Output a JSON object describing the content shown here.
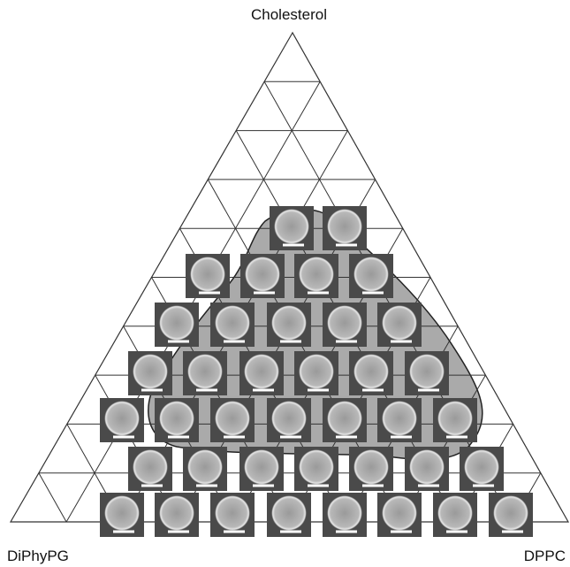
{
  "labels": {
    "top": "Cholesterol",
    "left": "DiPhyPG",
    "right": "DPPC"
  }
}
